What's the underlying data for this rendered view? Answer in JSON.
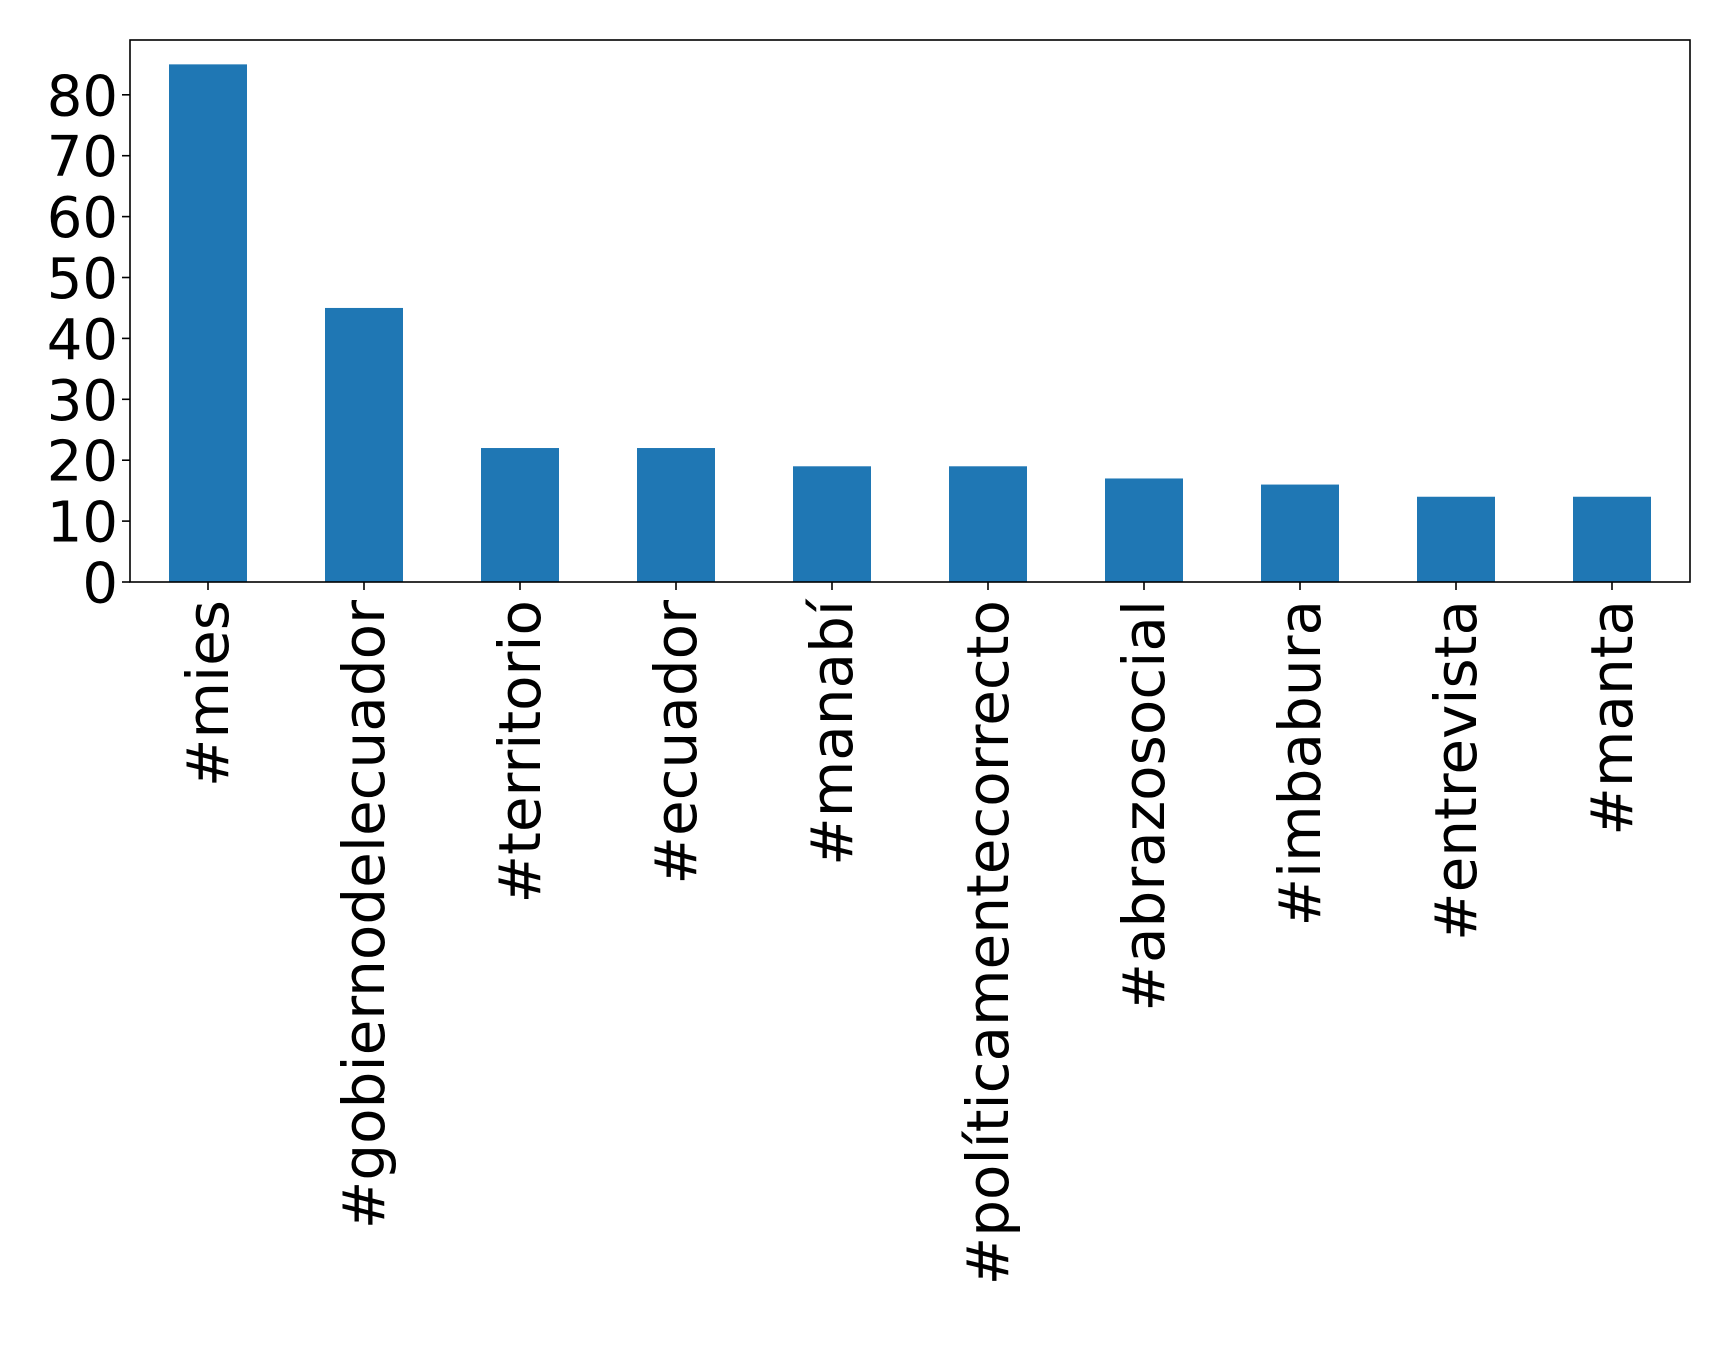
{
  "chart_data": {
    "type": "bar",
    "title": "",
    "xlabel": "",
    "ylabel": "",
    "categories": [
      "#mies",
      "#gobiernodelecuador",
      "#territorio",
      "#ecuador",
      "#manabí",
      "#políticamentecorrecto",
      "#abrazosocial",
      "#imbabura",
      "#entrevista",
      "#manta"
    ],
    "values": [
      85,
      45,
      22,
      22,
      19,
      19,
      17,
      16,
      14,
      14
    ],
    "ylim": [
      0,
      89
    ],
    "yticks": [
      0,
      10,
      20,
      30,
      40,
      50,
      60,
      70,
      80
    ],
    "grid": false,
    "legend": "none",
    "bar_color": "#1f77b4"
  }
}
